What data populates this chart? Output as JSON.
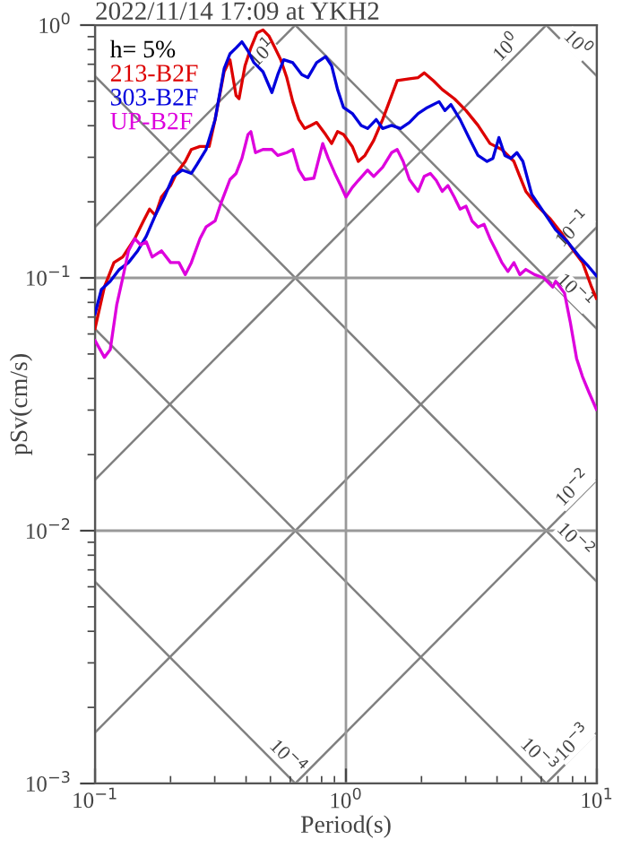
{
  "chart_data": {
    "type": "line",
    "title": "2022/11/14 17:09 at YKH2",
    "xlabel": "Period(s)",
    "ylabel": "pSv(cm/s)",
    "legend_title": "h= 5%",
    "legend": "top left",
    "log": "xy",
    "grid": true,
    "xlim": [
      0.1,
      10
    ],
    "ylim": [
      0.001,
      1
    ],
    "xticks": [
      {
        "value": 0.1,
        "label": "10$^{−1}$"
      },
      {
        "value": 1,
        "label": "10$^{0}$"
      },
      {
        "value": 10,
        "label": "10$^{1}$"
      }
    ],
    "yticks": [
      {
        "value": 0.001,
        "label": "10$^{−3}$"
      },
      {
        "value": 0.01,
        "label": "10$^{−2}$"
      },
      {
        "value": 0.1,
        "label": "10$^{−1}$"
      },
      {
        "value": 1,
        "label": "10$^{0}$"
      }
    ],
    "series": [
      {
        "color": "#808080",
        "x": [
          6.283,
          10
        ],
        "values": [
          1,
          0.628
        ]
      },
      {
        "color": "#808080",
        "x": [
          0.6283,
          10
        ],
        "values": [
          1,
          0.0628
        ]
      },
      {
        "color": "#808080",
        "x": [
          0.1,
          10
        ],
        "values": [
          0.628,
          0.00628
        ]
      },
      {
        "color": "#808080",
        "x": [
          0.1,
          6.283
        ],
        "values": [
          0.0628,
          0.001
        ]
      },
      {
        "color": "#808080",
        "x": [
          0.1,
          0.6283
        ],
        "values": [
          0.00628,
          0.001
        ]
      },
      {
        "color": "#808080",
        "x": [
          0.1,
          0.6283
        ],
        "values": [
          0.159,
          1
        ]
      },
      {
        "color": "#808080",
        "x": [
          0.1,
          6.283
        ],
        "values": [
          0.0159,
          1
        ]
      },
      {
        "color": "#808080",
        "x": [
          0.1,
          10
        ],
        "values": [
          0.00159,
          0.159
        ]
      },
      {
        "color": "#808080",
        "x": [
          0.6283,
          10
        ],
        "values": [
          0.001,
          0.0159
        ]
      },
      {
        "color": "#808080",
        "x": [
          6.283,
          10
        ],
        "values": [
          0.001,
          0.00159
        ]
      },
      {
        "name": "213-B2F",
        "color": "#dd0000",
        "x": [
          0.1,
          0.109,
          0.119,
          0.129,
          0.144,
          0.156,
          0.165,
          0.174,
          0.184,
          0.2,
          0.211,
          0.229,
          0.242,
          0.262,
          0.285,
          0.301,
          0.327,
          0.345,
          0.365,
          0.375,
          0.396,
          0.418,
          0.442,
          0.467,
          0.493,
          0.521,
          0.55,
          0.581,
          0.614,
          0.649,
          0.685,
          0.724,
          0.764,
          0.83,
          0.877,
          0.926,
          0.978,
          1.06,
          1.12,
          1.19,
          1.29,
          1.4,
          1.52,
          1.6,
          1.79,
          1.94,
          2.05,
          2.23,
          2.42,
          2.7,
          3.01,
          3.36,
          3.75,
          4.18,
          4.67,
          4.93,
          5.21,
          5.81,
          6.49,
          7.24,
          8.08,
          8.77,
          9.52,
          9.95
        ],
        "values": [
          0.063,
          0.092,
          0.115,
          0.121,
          0.143,
          0.168,
          0.187,
          0.177,
          0.209,
          0.232,
          0.259,
          0.289,
          0.322,
          0.331,
          0.331,
          0.423,
          0.654,
          0.729,
          0.526,
          0.512,
          0.69,
          0.813,
          0.931,
          0.957,
          0.906,
          0.813,
          0.729,
          0.62,
          0.498,
          0.423,
          0.39,
          0.401,
          0.412,
          0.369,
          0.34,
          0.379,
          0.369,
          0.331,
          0.289,
          0.305,
          0.35,
          0.423,
          0.526,
          0.603,
          0.613,
          0.62,
          0.647,
          0.603,
          0.556,
          0.512,
          0.459,
          0.401,
          0.34,
          0.322,
          0.289,
          0.252,
          0.22,
          0.192,
          0.172,
          0.15,
          0.128,
          0.115,
          0.092,
          0.083
        ]
      },
      {
        "name": "303-B2F",
        "color": "#0000dd",
        "x": [
          0.1,
          0.106,
          0.115,
          0.125,
          0.136,
          0.148,
          0.16,
          0.174,
          0.189,
          0.205,
          0.223,
          0.242,
          0.255,
          0.277,
          0.301,
          0.327,
          0.345,
          0.365,
          0.385,
          0.407,
          0.43,
          0.467,
          0.507,
          0.535,
          0.565,
          0.614,
          0.667,
          0.705,
          0.764,
          0.83,
          0.877,
          0.926,
          0.978,
          1.06,
          1.15,
          1.22,
          1.32,
          1.4,
          1.52,
          1.65,
          1.79,
          1.94,
          2.11,
          2.35,
          2.48,
          2.62,
          2.85,
          3.09,
          3.36,
          3.65,
          3.85,
          4.07,
          4.3,
          4.54,
          4.8,
          5.07,
          5.5,
          6.14,
          6.85,
          7.64,
          8.53,
          9.26,
          9.95
        ],
        "values": [
          0.072,
          0.09,
          0.097,
          0.108,
          0.115,
          0.128,
          0.146,
          0.177,
          0.209,
          0.252,
          0.267,
          0.259,
          0.281,
          0.322,
          0.423,
          0.672,
          0.77,
          0.813,
          0.859,
          0.791,
          0.71,
          0.654,
          0.541,
          0.637,
          0.729,
          0.71,
          0.637,
          0.62,
          0.71,
          0.75,
          0.69,
          0.556,
          0.472,
          0.447,
          0.401,
          0.39,
          0.423,
          0.39,
          0.401,
          0.39,
          0.412,
          0.447,
          0.472,
          0.498,
          0.459,
          0.485,
          0.423,
          0.359,
          0.305,
          0.289,
          0.297,
          0.359,
          0.305,
          0.297,
          0.313,
          0.289,
          0.214,
          0.182,
          0.155,
          0.139,
          0.121,
          0.111,
          0.102
        ]
      },
      {
        "name": "UP-B2F",
        "color": "#dd00dd",
        "x": [
          0.1,
          0.109,
          0.115,
          0.122,
          0.129,
          0.136,
          0.144,
          0.152,
          0.16,
          0.169,
          0.184,
          0.2,
          0.216,
          0.229,
          0.242,
          0.262,
          0.277,
          0.301,
          0.318,
          0.345,
          0.365,
          0.385,
          0.407,
          0.418,
          0.436,
          0.467,
          0.507,
          0.535,
          0.581,
          0.614,
          0.649,
          0.685,
          0.745,
          0.808,
          0.85,
          0.903,
          0.953,
          1.0,
          1.06,
          1.12,
          1.22,
          1.29,
          1.4,
          1.52,
          1.6,
          1.69,
          1.79,
          1.94,
          2.05,
          2.17,
          2.29,
          2.42,
          2.55,
          2.7,
          2.85,
          3.01,
          3.18,
          3.36,
          3.55,
          3.75,
          3.97,
          4.18,
          4.42,
          4.67,
          4.93,
          5.21,
          5.65,
          6.14,
          6.66,
          6.85,
          7.43,
          7.84,
          8.3,
          8.76,
          9.26,
          9.95
        ],
        "values": [
          0.0565,
          0.0485,
          0.052,
          0.078,
          0.1,
          0.128,
          0.143,
          0.135,
          0.139,
          0.121,
          0.128,
          0.115,
          0.115,
          0.103,
          0.115,
          0.143,
          0.159,
          0.168,
          0.198,
          0.245,
          0.259,
          0.297,
          0.369,
          0.379,
          0.313,
          0.322,
          0.322,
          0.305,
          0.313,
          0.322,
          0.267,
          0.245,
          0.248,
          0.34,
          0.297,
          0.259,
          0.232,
          0.209,
          0.228,
          0.243,
          0.267,
          0.252,
          0.274,
          0.313,
          0.322,
          0.289,
          0.245,
          0.22,
          0.252,
          0.259,
          0.243,
          0.22,
          0.232,
          0.209,
          0.187,
          0.192,
          0.168,
          0.159,
          0.163,
          0.143,
          0.128,
          0.115,
          0.106,
          0.115,
          0.103,
          0.108,
          0.103,
          0.1,
          0.092,
          0.097,
          0.087,
          0.0665,
          0.048,
          0.0407,
          0.0356,
          0.0302
        ]
      }
    ],
    "annotations": [
      {
        "text": "10$^{1}$",
        "x": 0.47,
        "y": 0.77
      },
      {
        "text": "10$^{0}$",
        "x": 4.4,
        "y": 0.81
      },
      {
        "text": "10$^{0}$",
        "x": 8.3,
        "y": 0.84
      },
      {
        "text": "10$^{−1}$",
        "x": 8.1,
        "y": 0.155
      },
      {
        "text": "10$^{−1}$",
        "x": 8.1,
        "y": 0.088
      },
      {
        "text": "10$^{−2}$",
        "x": 8.1,
        "y": 0.0146
      },
      {
        "text": "10$^{−2}$",
        "x": 8.1,
        "y": 0.0091
      },
      {
        "text": "10$^{−4}$",
        "x": 0.58,
        "y": 0.00126
      },
      {
        "text": "10$^{−3}$",
        "x": 5.8,
        "y": 0.00128
      },
      {
        "text": "10$^{−3}$",
        "x": 8.1,
        "y": 0.00144
      }
    ]
  }
}
